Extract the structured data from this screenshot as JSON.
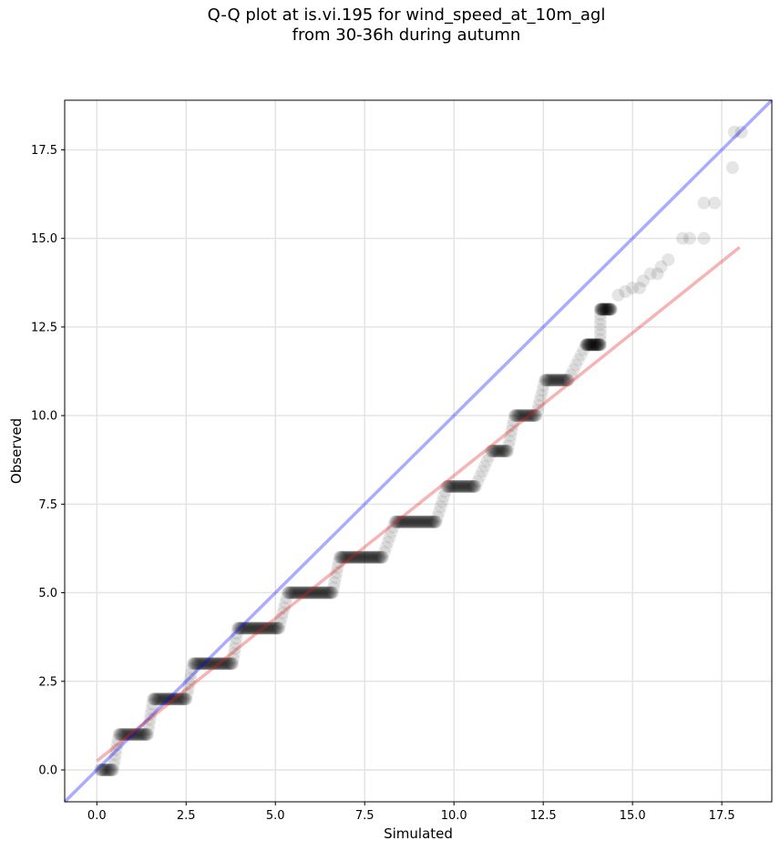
{
  "chart_data": {
    "type": "scatter",
    "title": [
      "Q-Q plot at is.vi.195 for wind_speed_at_10m_agl",
      "from 30-36h during autumn"
    ],
    "xlabel": "Simulated",
    "ylabel": "Observed",
    "xlim": [
      -0.9,
      18.9
    ],
    "ylim": [
      -0.9,
      18.9
    ],
    "xticks": [
      "0.0",
      "2.5",
      "5.0",
      "7.5",
      "10.0",
      "12.5",
      "15.0",
      "17.5"
    ],
    "yticks": [
      "0.0",
      "2.5",
      "5.0",
      "7.5",
      "10.0",
      "12.5",
      "15.0",
      "17.5"
    ],
    "grid": true,
    "reference_line": {
      "name": "1:1 line",
      "color": "#0000ff",
      "points": [
        [
          -0.9,
          -0.9
        ],
        [
          18.9,
          18.9
        ]
      ]
    },
    "fit_line": {
      "name": "regression fit",
      "color": "#e31a1c",
      "points": [
        [
          0.0,
          0.25
        ],
        [
          18.0,
          14.75
        ]
      ]
    },
    "steps": [
      {
        "y": 0,
        "x_start": 0.1,
        "x_end": 0.45
      },
      {
        "y": 1,
        "x_start": 0.62,
        "x_end": 1.42
      },
      {
        "y": 2,
        "x_start": 1.58,
        "x_end": 2.5
      },
      {
        "y": 3,
        "x_start": 2.7,
        "x_end": 3.8
      },
      {
        "y": 4,
        "x_start": 3.95,
        "x_end": 5.1
      },
      {
        "y": 5,
        "x_start": 5.35,
        "x_end": 6.6
      },
      {
        "y": 6,
        "x_start": 6.8,
        "x_end": 8.0
      },
      {
        "y": 7,
        "x_start": 8.35,
        "x_end": 9.5
      },
      {
        "y": 8,
        "x_start": 9.8,
        "x_end": 10.6
      },
      {
        "y": 9,
        "x_start": 11.05,
        "x_end": 11.5
      },
      {
        "y": 10,
        "x_start": 11.7,
        "x_end": 12.3
      },
      {
        "y": 11,
        "x_start": 12.55,
        "x_end": 13.2
      },
      {
        "y": 12,
        "x_start": 13.7,
        "x_end": 14.1
      },
      {
        "y": 13,
        "x_start": 14.1,
        "x_end": 14.4
      }
    ],
    "tail_points": [
      [
        14.6,
        13.4
      ],
      [
        14.8,
        13.5
      ],
      [
        15.0,
        13.6
      ],
      [
        15.3,
        13.8
      ],
      [
        15.2,
        13.6
      ],
      [
        15.5,
        14.0
      ],
      [
        15.7,
        14.0
      ],
      [
        15.8,
        14.2
      ],
      [
        16.0,
        14.4
      ],
      [
        16.4,
        15.0
      ],
      [
        16.6,
        15.0
      ],
      [
        17.0,
        15.0
      ],
      [
        17.0,
        16.0
      ],
      [
        17.3,
        16.0
      ],
      [
        17.8,
        17.0
      ],
      [
        17.85,
        18.0
      ],
      [
        18.05,
        18.0
      ]
    ]
  }
}
